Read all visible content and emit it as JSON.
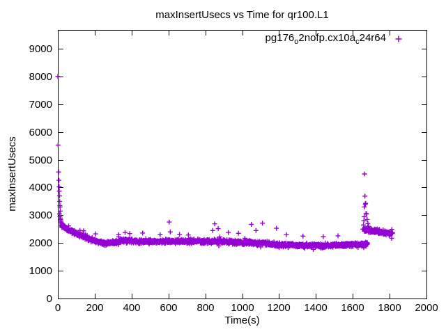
{
  "colors": {
    "accent": "#9400D3",
    "axis": "#000000",
    "background": "#ffffff"
  },
  "chart_data": {
    "type": "scatter",
    "title": "maxInsertUsecs vs Time for qr100.L1",
    "xlabel": "Time(s)",
    "ylabel": "maxInsertUsecs",
    "xlim": [
      0,
      2000
    ],
    "ylim": [
      0,
      9680
    ],
    "xticks": [
      0,
      200,
      400,
      600,
      800,
      1000,
      1200,
      1400,
      1600,
      1800,
      2000
    ],
    "yticks": [
      0,
      1000,
      2000,
      3000,
      4000,
      5000,
      6000,
      7000,
      8000,
      9000
    ],
    "grid": false,
    "legend": {
      "position": "top-right-inside",
      "label_plain": "pg176_o2nofp.cx10a_c24r64",
      "parts": [
        {
          "t": "pg176",
          "sub": false
        },
        {
          "t": "o",
          "sub": true
        },
        {
          "t": "2nofp.cx10a",
          "sub": false
        },
        {
          "t": "c",
          "sub": true
        },
        {
          "t": "24r64",
          "sub": false
        }
      ]
    },
    "marker": {
      "shape": "plus",
      "color": "#9400D3",
      "size": 7
    },
    "series_name": "pg176_o2nofp.cx10a_c24r64",
    "seed": 11,
    "halo_fraction": 0.07,
    "halo_mult": 2.0,
    "points_explicit": [
      [
        0,
        8000
      ],
      [
        1,
        5530
      ],
      [
        4,
        4560
      ],
      [
        6,
        4260
      ],
      [
        7,
        4030
      ],
      [
        8,
        3870
      ],
      [
        9,
        3700
      ],
      [
        10,
        3500
      ],
      [
        11,
        3350
      ],
      [
        12,
        3300
      ],
      [
        13,
        3150
      ],
      [
        9,
        3050
      ],
      [
        11,
        2950
      ],
      [
        14,
        2900
      ],
      [
        15,
        2850
      ],
      [
        16,
        2800
      ],
      [
        18,
        2760
      ],
      [
        20,
        2720
      ],
      [
        22,
        2680
      ],
      [
        25,
        2640
      ],
      [
        28,
        2600
      ],
      [
        31,
        2560
      ],
      [
        34,
        2530
      ],
      [
        140,
        2440
      ],
      [
        205,
        2330
      ],
      [
        330,
        2300
      ],
      [
        365,
        2380
      ],
      [
        390,
        2340
      ],
      [
        460,
        2360
      ],
      [
        555,
        2300
      ],
      [
        604,
        2757
      ],
      [
        610,
        2400
      ],
      [
        660,
        2310
      ],
      [
        708,
        2290
      ],
      [
        840,
        2450
      ],
      [
        851,
        2690
      ],
      [
        870,
        2520
      ],
      [
        925,
        2380
      ],
      [
        980,
        2350
      ],
      [
        1050,
        2670
      ],
      [
        1075,
        2450
      ],
      [
        1110,
        2715
      ],
      [
        1186,
        2530
      ],
      [
        1240,
        2300
      ],
      [
        1330,
        2250
      ],
      [
        1440,
        2230
      ],
      [
        1520,
        2260
      ],
      [
        1655,
        2500
      ],
      [
        1658,
        2650
      ],
      [
        1660,
        2800
      ],
      [
        1662,
        2950
      ],
      [
        1663,
        3300
      ],
      [
        1664,
        4490
      ],
      [
        1666,
        3690
      ],
      [
        1668,
        3400
      ],
      [
        1670,
        3430
      ],
      [
        1672,
        3060
      ],
      [
        1675,
        3050
      ],
      [
        1678,
        2850
      ],
      [
        1682,
        2700
      ],
      [
        1686,
        2600
      ]
    ],
    "bands": [
      {
        "x0": 20,
        "x1": 160,
        "y0": 2600,
        "y1": 2180,
        "spread": 110,
        "count": 150
      },
      {
        "x0": 160,
        "x1": 250,
        "y0": 2150,
        "y1": 1990,
        "spread": 90,
        "count": 100
      },
      {
        "x0": 250,
        "x1": 330,
        "y0": 1990,
        "y1": 2040,
        "spread": 90,
        "count": 90
      },
      {
        "x0": 330,
        "x1": 430,
        "y0": 2090,
        "y1": 2070,
        "spread": 105,
        "count": 110
      },
      {
        "x0": 430,
        "x1": 620,
        "y0": 2050,
        "y1": 2060,
        "spread": 100,
        "count": 200
      },
      {
        "x0": 620,
        "x1": 900,
        "y0": 2060,
        "y1": 2060,
        "spread": 110,
        "count": 290
      },
      {
        "x0": 900,
        "x1": 1150,
        "y0": 2040,
        "y1": 1990,
        "spread": 110,
        "count": 260
      },
      {
        "x0": 1150,
        "x1": 1450,
        "y0": 1950,
        "y1": 1900,
        "spread": 100,
        "count": 310
      },
      {
        "x0": 1450,
        "x1": 1680,
        "y0": 1905,
        "y1": 1960,
        "spread": 100,
        "count": 230
      },
      {
        "x0": 1660,
        "x1": 1815,
        "y0": 2480,
        "y1": 2330,
        "spread": 110,
        "count": 160
      }
    ]
  }
}
